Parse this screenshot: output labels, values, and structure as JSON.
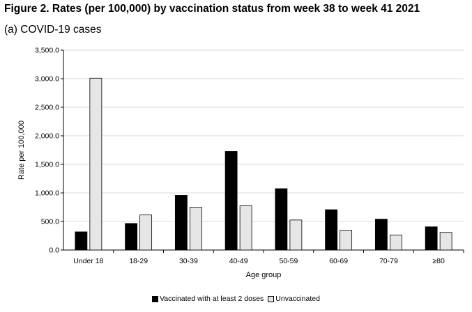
{
  "title": "Figure 2. Rates (per 100,000) by vaccination status from week 38 to week 41 2021",
  "subtitle": "(a) COVID-19 cases",
  "chart_data": {
    "type": "bar",
    "categories": [
      "Under 18",
      "18-29",
      "30-39",
      "40-49",
      "50-59",
      "60-69",
      "70-79",
      "≥80"
    ],
    "series": [
      {
        "name": "Vaccinated with at least 2 doses",
        "color": "#000000",
        "values": [
          318,
          465,
          958,
          1726,
          1074,
          706,
          540,
          406
        ]
      },
      {
        "name": "Unvaccinated",
        "color": "#e6e6e6",
        "values": [
          3009,
          614,
          750,
          775,
          526,
          345,
          263,
          308
        ]
      }
    ],
    "ylim": [
      0,
      3500
    ],
    "yticks": [
      "0.0",
      "500.0",
      "1,000.0",
      "1,500.0",
      "2,000.0",
      "2,500.0",
      "3,000.0",
      "3,500.0"
    ],
    "ytick_values": [
      0,
      500,
      1000,
      1500,
      2000,
      2500,
      3000,
      3500
    ],
    "xlabel": "Age group",
    "ylabel": "Rate per 100,000",
    "grid": true,
    "legend_position": "bottom"
  }
}
